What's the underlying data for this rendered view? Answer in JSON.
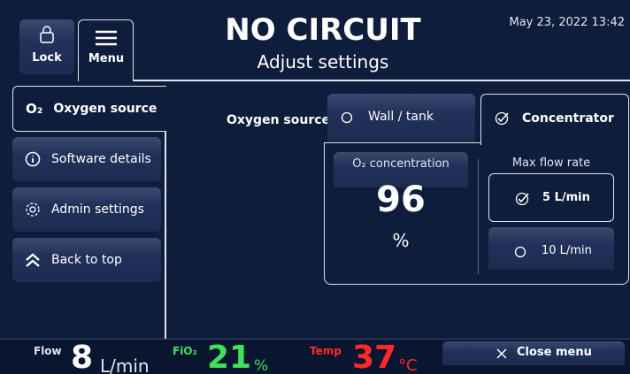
{
  "header": {
    "lock_label": "Lock",
    "menu_label": "Menu",
    "title": "NO CIRCUIT",
    "subtitle": "Adjust settings",
    "datetime": "May 23, 2022 13:42"
  },
  "sidebar": {
    "items": [
      {
        "icon": "O₂",
        "label": "Oxygen source"
      },
      {
        "label": "Software details"
      },
      {
        "label": "Admin settings"
      },
      {
        "label": "Back to top"
      }
    ]
  },
  "main": {
    "source_label": "Oxygen source:",
    "options": [
      "Wall / tank",
      "Concentrator"
    ],
    "concentration": {
      "label": "O₂ concentration",
      "value": "96",
      "unit": "%"
    },
    "flow_rate": {
      "label": "Max flow rate",
      "options": [
        "5 L/min",
        "10 L/min"
      ]
    }
  },
  "footer": {
    "flow": {
      "label": "Flow",
      "value": "8",
      "unit": "L/min"
    },
    "fio2": {
      "label": "FiO₂",
      "value": "21",
      "unit": "%"
    },
    "temp": {
      "label": "Temp",
      "value": "37",
      "unit": "°C"
    },
    "close_label": "Close menu"
  }
}
